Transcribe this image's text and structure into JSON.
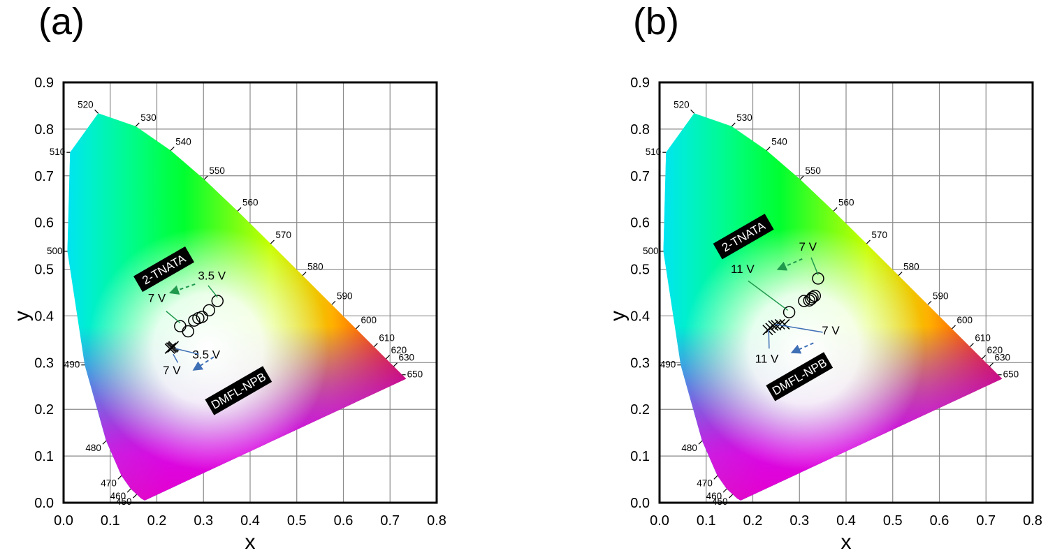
{
  "colors": {
    "green_arrow": "#1f9a4d",
    "blue_arrow": "#3f6fb5",
    "green_leader": "#1f9a4d",
    "blue_leader": "#3f6fb5"
  },
  "chart_data": [
    {
      "panel": "(a)",
      "type": "scatter",
      "background": "CIE 1931 chromaticity diagram",
      "xlabel": "x",
      "ylabel": "y",
      "xlim": [
        0.0,
        0.8
      ],
      "ylim": [
        0.0,
        0.9
      ],
      "xticks": [
        "0.0",
        "0.1",
        "0.2",
        "0.3",
        "0.4",
        "0.5",
        "0.6",
        "0.7",
        "0.8"
      ],
      "yticks": [
        "0.0",
        "0.1",
        "0.2",
        "0.3",
        "0.4",
        "0.5",
        "0.6",
        "0.7",
        "0.8",
        "0.9"
      ],
      "grid": true,
      "wavelength_labels": [
        "450",
        "460",
        "470",
        "480",
        "490",
        "500",
        "510",
        "520",
        "530",
        "540",
        "550",
        "560",
        "570",
        "580",
        "590",
        "600",
        "610",
        "620",
        "630",
        "650"
      ],
      "series": [
        {
          "name": "2-TNATA",
          "marker": "circle",
          "points": [
            [
              0.25,
              0.378
            ],
            [
              0.267,
              0.367
            ],
            [
              0.28,
              0.39
            ],
            [
              0.289,
              0.395
            ],
            [
              0.297,
              0.398
            ],
            [
              0.312,
              0.412
            ],
            [
              0.33,
              0.432
            ]
          ]
        },
        {
          "name": "DMFL-NPB",
          "marker": "cross",
          "points": [
            [
              0.228,
              0.33
            ],
            [
              0.231,
              0.332
            ],
            [
              0.234,
              0.333
            ],
            [
              0.236,
              0.335
            ]
          ]
        }
      ],
      "labels": [
        "2-TNATA",
        "DMFL-NPB"
      ],
      "annotations": [
        {
          "text": "3.5 V",
          "x": 0.318,
          "y": 0.478,
          "color": "green"
        },
        {
          "text": "7 V",
          "x": 0.2,
          "y": 0.43,
          "color": "green"
        },
        {
          "text": "3.5 V",
          "x": 0.306,
          "y": 0.309,
          "color": "blue"
        },
        {
          "text": "7 V",
          "x": 0.232,
          "y": 0.275,
          "color": "blue"
        }
      ]
    },
    {
      "panel": "(b)",
      "type": "scatter",
      "background": "CIE 1931 chromaticity diagram",
      "xlabel": "x",
      "ylabel": "y",
      "xlim": [
        0.0,
        0.8
      ],
      "ylim": [
        0.0,
        0.9
      ],
      "xticks": [
        "0.0",
        "0.1",
        "0.2",
        "0.3",
        "0.4",
        "0.5",
        "0.6",
        "0.7",
        "0.8"
      ],
      "yticks": [
        "0.0",
        "0.1",
        "0.2",
        "0.3",
        "0.4",
        "0.5",
        "0.6",
        "0.7",
        "0.8",
        "0.9"
      ],
      "grid": true,
      "wavelength_labels": [
        "450",
        "460",
        "470",
        "480",
        "490",
        "500",
        "510",
        "520",
        "530",
        "540",
        "550",
        "560",
        "570",
        "580",
        "590",
        "600",
        "610",
        "620",
        "630",
        "650"
      ],
      "series": [
        {
          "name": "2-TNATA",
          "marker": "circle",
          "points": [
            [
              0.278,
              0.408
            ],
            [
              0.31,
              0.432
            ],
            [
              0.321,
              0.433
            ],
            [
              0.325,
              0.436
            ],
            [
              0.328,
              0.44
            ],
            [
              0.333,
              0.443
            ],
            [
              0.34,
              0.48
            ]
          ]
        },
        {
          "name": "DMFL-NPB",
          "marker": "cross",
          "points": [
            [
              0.232,
              0.37
            ],
            [
              0.238,
              0.374
            ],
            [
              0.244,
              0.379
            ],
            [
              0.25,
              0.38
            ],
            [
              0.258,
              0.382
            ],
            [
              0.268,
              0.382
            ]
          ]
        }
      ],
      "labels": [
        "2-TNATA",
        "DMFL-NPB"
      ],
      "annotations": [
        {
          "text": "7 V",
          "x": 0.318,
          "y": 0.54,
          "color": "green"
        },
        {
          "text": "11 V",
          "x": 0.178,
          "y": 0.492,
          "color": "green"
        },
        {
          "text": "7 V",
          "x": 0.367,
          "y": 0.36,
          "color": "blue"
        },
        {
          "text": "11 V",
          "x": 0.23,
          "y": 0.3,
          "color": "blue"
        }
      ]
    }
  ]
}
